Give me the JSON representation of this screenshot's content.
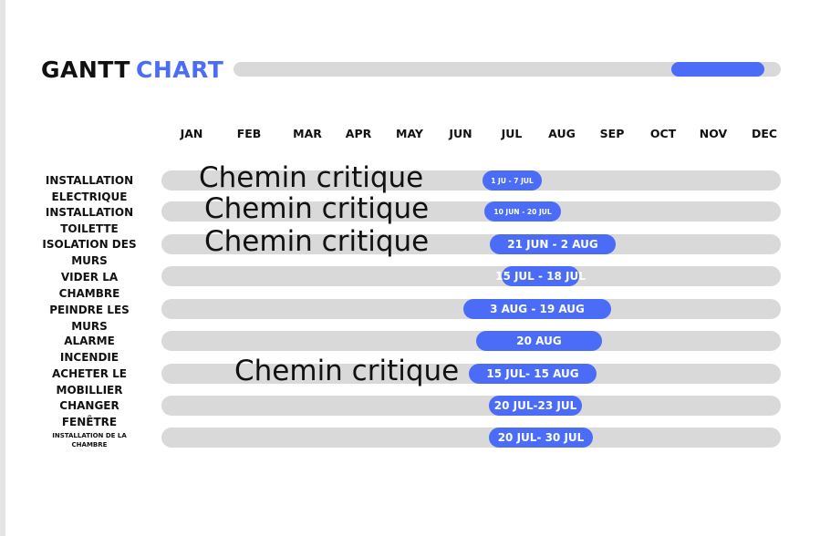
{
  "header": {
    "title_part1": "GANTT",
    "title_part2": "CHART",
    "progress": {
      "start_fraction": 0.8,
      "end_fraction": 0.97
    }
  },
  "colors": {
    "accent": "#4a6cf7",
    "track": "#d9d9d9",
    "text": "#111111"
  },
  "chart_data": {
    "type": "gantt",
    "title": "GANTT CHART",
    "months": [
      "JAN",
      "FEB",
      "MAR",
      "APR",
      "MAY",
      "JUN",
      "JUL",
      "AUG",
      "SEP",
      "OCT",
      "NOV",
      "DEC"
    ],
    "tasks": [
      {
        "label": "INSTALLATION ELECTRIQUE",
        "bar_label": "1 JU - 7 JUL",
        "start_month": 6.0,
        "end_month": 7.1,
        "annotation": "Chemin critique"
      },
      {
        "label": "INSTALLATION TOILETTE",
        "bar_label": "10 JUN - 20 JUL",
        "start_month": 6.1,
        "end_month": 7.55,
        "annotation": "Chemin critique"
      },
      {
        "label": "ISOLATION DES MURS",
        "bar_label": "21 JUN - 2 AUG",
        "start_month": 6.2,
        "end_month": 8.7,
        "annotation": "Chemin critique"
      },
      {
        "label": "VIDER LA CHAMBRE",
        "bar_label": "15 JUL - 18 JUL",
        "start_month": 6.5,
        "end_month": 8.0,
        "annotation": ""
      },
      {
        "label": "PEINDRE LES MURS",
        "bar_label": "3 AUG - 19 AUG",
        "start_month": 5.6,
        "end_month": 8.6,
        "annotation": ""
      },
      {
        "label": "ALARME INCENDIE",
        "bar_label": "20 AUG",
        "start_month": 5.9,
        "end_month": 8.4,
        "annotation": ""
      },
      {
        "label": "ACHETER LE MOBILLIER",
        "bar_label": "15 JUL- 15 AUG",
        "start_month": 5.75,
        "end_month": 8.25,
        "annotation": "Chemin critique"
      },
      {
        "label": "CHANGER FENÊTRE",
        "bar_label": "20 JUL-23 JUL",
        "start_month": 6.2,
        "end_month": 8.0,
        "annotation": ""
      },
      {
        "label": "INSTALLATION DE LA CHAMBRE",
        "bar_label": "20 JUL- 30 JUL",
        "start_month": 6.2,
        "end_month": 8.2,
        "annotation": ""
      }
    ]
  }
}
